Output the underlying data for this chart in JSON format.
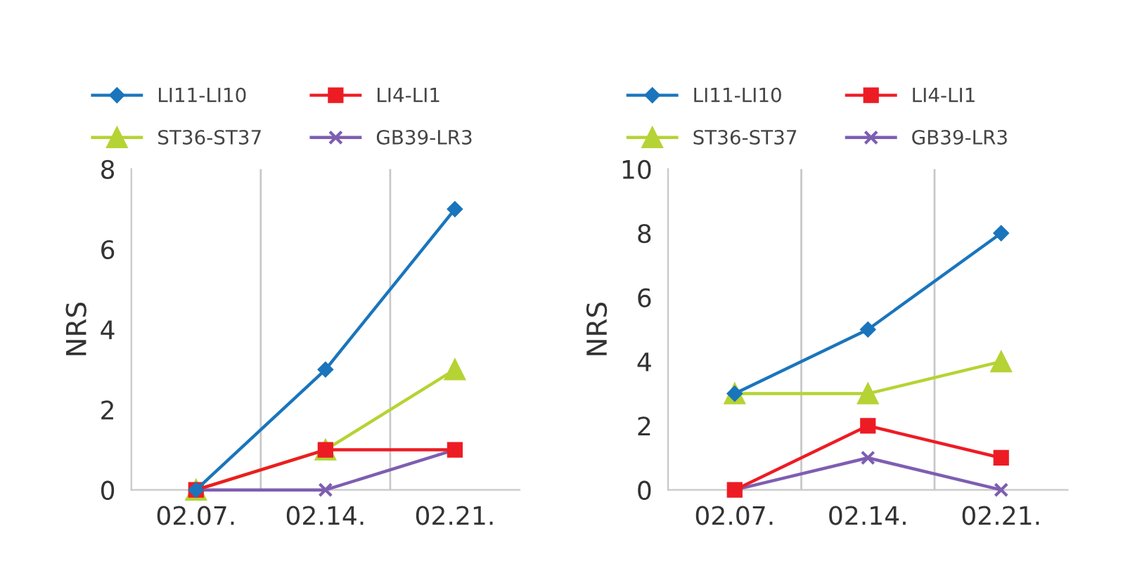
{
  "chart_data": [
    {
      "type": "line",
      "ylabel": "NRS",
      "categories": [
        "02.07.",
        "02.14.",
        "02.21."
      ],
      "ylim": [
        0,
        8
      ],
      "yticks": [
        0,
        2,
        4,
        6,
        8
      ],
      "grid": "x",
      "legend": "top",
      "series": [
        {
          "name": "LI11-LI10",
          "color": "#1a75bc",
          "marker": "diamond",
          "values": [
            0,
            3,
            7
          ]
        },
        {
          "name": "LI4-LI1",
          "color": "#ed1c24",
          "marker": "square",
          "values": [
            0,
            1,
            1
          ]
        },
        {
          "name": "ST36-ST37",
          "color": "#b5d334",
          "marker": "triangle",
          "values": [
            0,
            1,
            3
          ]
        },
        {
          "name": "GB39-LR3",
          "color": "#7e5eb1",
          "marker": "cross",
          "values": [
            0,
            0,
            1
          ]
        }
      ]
    },
    {
      "type": "line",
      "ylabel": "NRS",
      "categories": [
        "02.07.",
        "02.14.",
        "02.21."
      ],
      "ylim": [
        0,
        10
      ],
      "yticks": [
        0,
        2,
        4,
        6,
        8,
        10
      ],
      "grid": "x",
      "legend": "top",
      "series": [
        {
          "name": "LI11-LI10",
          "color": "#1a75bc",
          "marker": "diamond",
          "values": [
            3,
            5,
            8
          ]
        },
        {
          "name": "LI4-LI1",
          "color": "#ed1c24",
          "marker": "square",
          "values": [
            0,
            2,
            1
          ]
        },
        {
          "name": "ST36-ST37",
          "color": "#b5d334",
          "marker": "triangle",
          "values": [
            3,
            3,
            4
          ]
        },
        {
          "name": "GB39-LR3",
          "color": "#7e5eb1",
          "marker": "cross",
          "values": [
            0,
            1,
            0
          ]
        }
      ]
    }
  ]
}
